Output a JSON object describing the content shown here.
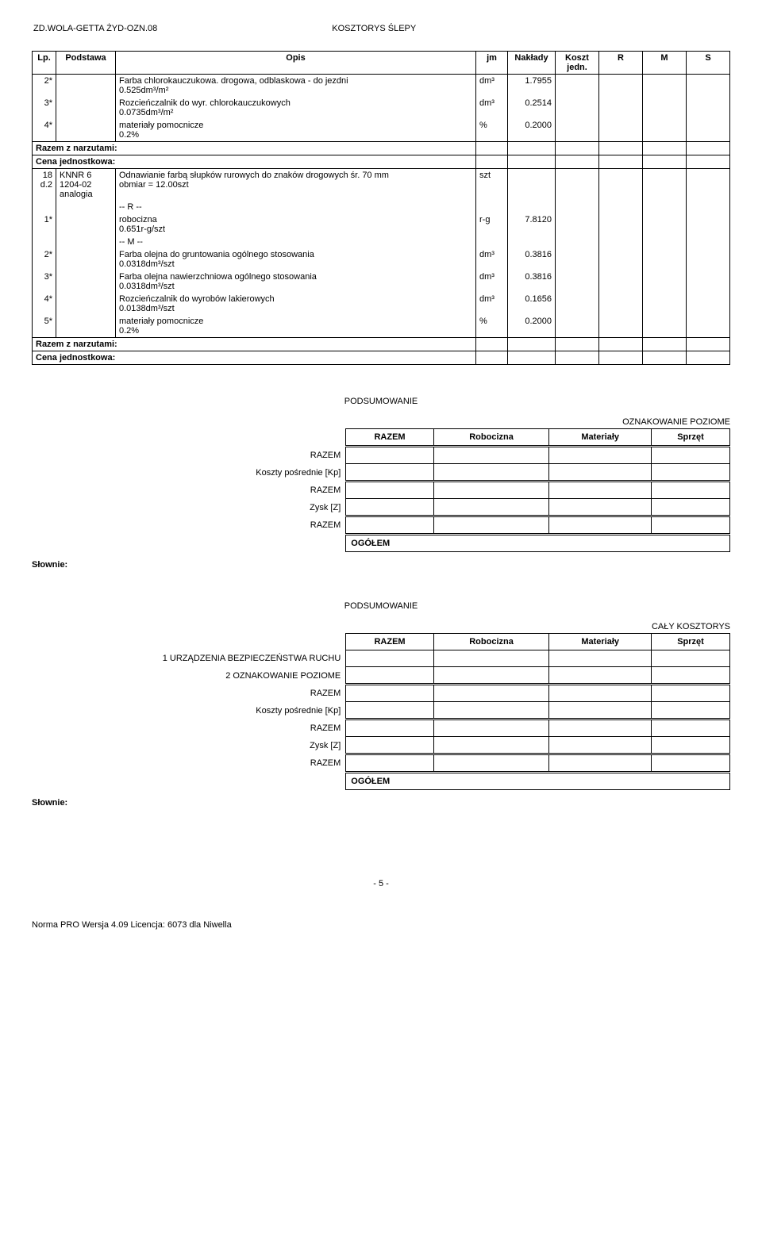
{
  "header": {
    "left": "ZD.WOLA-GETTA ŻYD-OZN.08",
    "right": "KOSZTORYS ŚLEPY"
  },
  "table": {
    "columns": [
      "Lp.",
      "Podstawa",
      "Opis",
      "jm",
      "Nakłady",
      "Koszt jedn.",
      "R",
      "M",
      "S"
    ],
    "rows": [
      {
        "lp": "2*",
        "pod": "",
        "opis": "Farba chlorokauczukowa. drogowa, odblaskowa - do jezdni\n0.525dm³/m²",
        "jm": "dm³",
        "nak": "1.7955"
      },
      {
        "lp": "3*",
        "pod": "",
        "opis": "Rozcieńczalnik do wyr. chlorokauczukowych\n0.0735dm³/m²",
        "jm": "dm³",
        "nak": "0.2514"
      },
      {
        "lp": "4*",
        "pod": "",
        "opis": "materiały pomocnicze\n0.2%",
        "jm": "%",
        "nak": "0.2000"
      },
      {
        "section": "Razem z narzutami:"
      },
      {
        "section": "Cena jednostkowa:"
      },
      {
        "lp": "18\nd.2",
        "pod": "KNNR 6\n1204-02\nanalogia",
        "opis": "Odnawianie farbą słupków rurowych do znaków drogowych śr. 70 mm\nobmiar = 12.00szt",
        "jm": "szt",
        "nak": ""
      },
      {
        "lp": "",
        "pod": "",
        "opis": "-- R --",
        "jm": "",
        "nak": ""
      },
      {
        "lp": "1*",
        "pod": "",
        "opis": "robocizna\n0.651r-g/szt",
        "jm": "r-g",
        "nak": "7.8120"
      },
      {
        "lp": "",
        "pod": "",
        "opis": "-- M --",
        "jm": "",
        "nak": ""
      },
      {
        "lp": "2*",
        "pod": "",
        "opis": "Farba olejna do gruntowania ogólnego stosowania\n0.0318dm³/szt",
        "jm": "dm³",
        "nak": "0.3816"
      },
      {
        "lp": "3*",
        "pod": "",
        "opis": "Farba olejna nawierzchniowa ogólnego stosowania\n0.0318dm³/szt",
        "jm": "dm³",
        "nak": "0.3816"
      },
      {
        "lp": "4*",
        "pod": "",
        "opis": "Rozcieńczalnik do wyrobów lakierowych\n0.0138dm³/szt",
        "jm": "dm³",
        "nak": "0.1656"
      },
      {
        "lp": "5*",
        "pod": "",
        "opis": "materiały pomocnicze\n0.2%",
        "jm": "%",
        "nak": "0.2000"
      },
      {
        "section": "Razem z narzutami:"
      },
      {
        "section": "Cena jednostkowa:"
      }
    ]
  },
  "summary1": {
    "title": "PODSUMOWANIE",
    "right_title": "OZNAKOWANIE POZIOME",
    "columns": [
      "RAZEM",
      "Robocizna",
      "Materiały",
      "Sprzęt"
    ],
    "labels": [
      "RAZEM",
      "Koszty pośrednie [Kp]",
      "RAZEM",
      "Zysk [Z]",
      "RAZEM"
    ],
    "ogolem": "OGÓŁEM",
    "slownie": "Słownie:"
  },
  "summary2": {
    "title": "PODSUMOWANIE",
    "right_title": "CAŁY KOSZTORYS",
    "columns": [
      "RAZEM",
      "Robocizna",
      "Materiały",
      "Sprzęt"
    ],
    "labels": [
      "1 URZĄDZENIA BEZPIECZEŃSTWA RUCHU",
      "2 OZNAKOWANIE POZIOME",
      "RAZEM",
      "Koszty pośrednie [Kp]",
      "RAZEM",
      "Zysk [Z]",
      "RAZEM"
    ],
    "ogolem": "OGÓŁEM",
    "slownie": "Słownie:"
  },
  "footer": {
    "page": "- 5 -",
    "soft": "Norma PRO Wersja 4.09 Licencja: 6073 dla Niwella"
  }
}
